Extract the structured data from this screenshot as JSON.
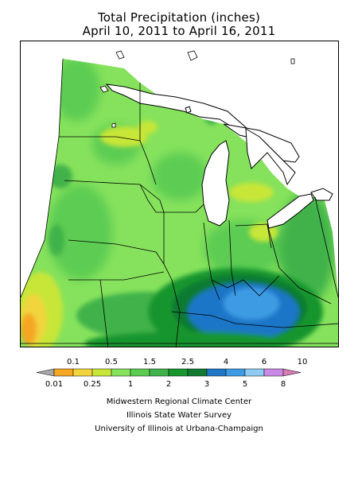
{
  "title": {
    "line1": "Total Precipitation (inches)",
    "line2": "April 10, 2011 to April 16, 2011"
  },
  "legend": {
    "top_labels": [
      "0.1",
      "0.5",
      "1.5",
      "2.5",
      "4",
      "6",
      "10"
    ],
    "bottom_labels": [
      "0.01",
      "0.25",
      "1",
      "2",
      "3",
      "5",
      "8"
    ],
    "colors": [
      "#f5a623",
      "#f2d43c",
      "#c8e639",
      "#86e25c",
      "#5ccc52",
      "#3fb24a",
      "#17952f",
      "#0f7a30",
      "#1f76c7",
      "#3d9be4",
      "#8ecaf1",
      "#c88ae5"
    ],
    "under_color": "#a8a8a8",
    "over_color": "#d77bb3"
  },
  "credits": {
    "line1": "Midwestern Regional Climate Center",
    "line2": "Illinois State Water Survey",
    "line3": "University of Illinois at Urbana-Champaign"
  }
}
